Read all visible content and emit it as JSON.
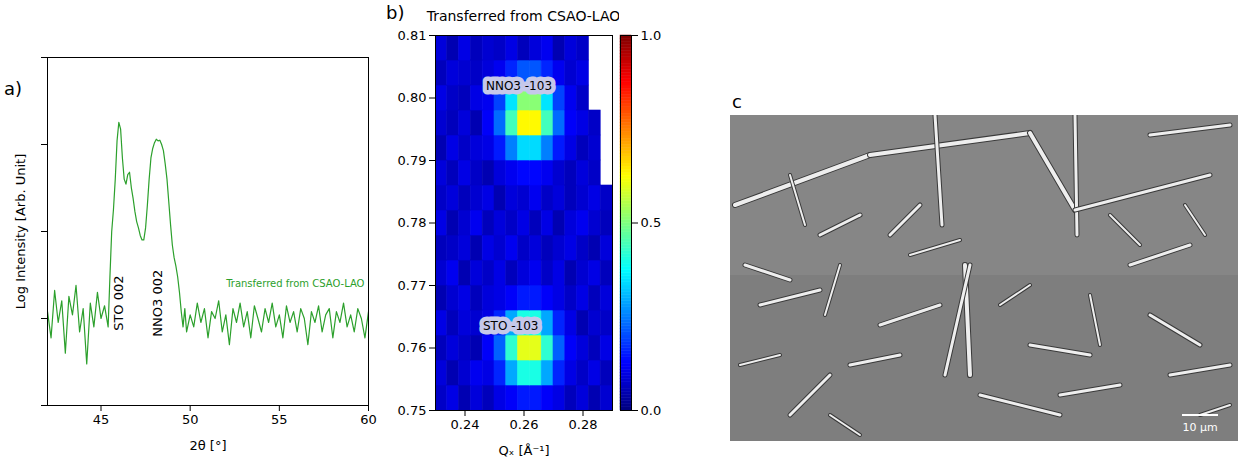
{
  "chart_data": [
    {
      "type": "line",
      "panel_label": "a)",
      "xlabel": "2θ [°]",
      "ylabel": "Log Intensity [Arb. Unit]",
      "log": "y",
      "tick_labels": "x",
      "legend": "right",
      "xlim": [
        42,
        60
      ],
      "xticks": [
        45,
        50,
        55,
        60
      ],
      "ylim": [
        0.1,
        1000
      ],
      "yticks": [
        0.1,
        1,
        10,
        100,
        1000
      ],
      "x": [
        42.0,
        42.2,
        42.4,
        42.6,
        42.8,
        43.0,
        43.2,
        43.4,
        43.6,
        43.8,
        44.0,
        44.2,
        44.4,
        44.6,
        44.8,
        45.0,
        45.2,
        45.4,
        45.5,
        45.6,
        45.7,
        45.8,
        45.9,
        46.0,
        46.1,
        46.2,
        46.3,
        46.4,
        46.5,
        46.6,
        46.7,
        46.8,
        46.9,
        47.0,
        47.1,
        47.2,
        47.3,
        47.4,
        47.5,
        47.6,
        47.7,
        47.8,
        47.9,
        48.0,
        48.1,
        48.2,
        48.3,
        48.4,
        48.5,
        48.6,
        48.7,
        48.8,
        48.9,
        49.0,
        49.1,
        49.2,
        49.3,
        49.4,
        49.5,
        49.6,
        49.7,
        49.8,
        50.0,
        50.2,
        50.4,
        50.6,
        50.8,
        51.0,
        51.2,
        51.4,
        51.6,
        51.8,
        52.0,
        52.2,
        52.4,
        52.6,
        52.8,
        53.0,
        53.2,
        53.4,
        53.6,
        53.8,
        54.0,
        54.2,
        54.4,
        54.6,
        54.8,
        55.0,
        55.2,
        55.4,
        55.6,
        55.8,
        56.0,
        56.2,
        56.4,
        56.6,
        56.8,
        57.0,
        57.2,
        57.4,
        57.6,
        57.8,
        58.0,
        58.2,
        58.4,
        58.6,
        58.8,
        59.0,
        59.2,
        59.4,
        59.6,
        59.8,
        60.0
      ],
      "series": [
        {
          "name": "Transferred from CSAO-LAO",
          "color": "#2ca02c",
          "values": [
            1.2,
            0.6,
            2.1,
            0.9,
            1.6,
            0.4,
            1.8,
            1.1,
            2.4,
            0.7,
            1.3,
            0.3,
            1.5,
            0.8,
            2.0,
            1.0,
            1.4,
            0.8,
            3,
            10,
            18,
            40,
            110,
            180,
            150,
            70,
            40,
            35,
            45,
            48,
            32,
            24,
            17,
            13,
            11,
            9,
            8,
            8,
            11,
            20,
            40,
            70,
            90,
            105,
            115,
            110,
            112,
            100,
            85,
            60,
            40,
            22,
            12,
            7,
            5,
            4,
            3,
            2,
            1.2,
            0.8,
            1.3,
            0.7,
            1.1,
            0.8,
            1.5,
            0.9,
            1.3,
            0.6,
            1.2,
            1.0,
            1.6,
            0.7,
            1.1,
            0.5,
            1.3,
            0.9,
            1.5,
            0.8,
            1.2,
            0.6,
            1.4,
            1.0,
            0.7,
            1.3,
            0.9,
            1.5,
            0.8,
            1.1,
            0.6,
            1.4,
            0.9,
            1.2,
            0.7,
            1.3,
            1.0,
            0.5,
            1.2,
            0.9,
            1.4,
            0.7,
            1.1,
            1.3,
            0.6,
            1.2,
            0.9,
            1.5,
            0.8,
            1.1,
            0.7,
            1.3,
            1.0,
            0.6,
            1.2
          ]
        }
      ],
      "annotations": [
        {
          "text": "STO 002",
          "x": 46.0,
          "y": 1.5
        },
        {
          "text": "NNO3 002",
          "x": 48.2,
          "y": 1.5
        }
      ]
    },
    {
      "type": "heatmap",
      "panel_label": "b)",
      "title": "Transferred from CSAO-LAO",
      "xlabel": "Qₓ [Å⁻¹]",
      "xlim": [
        0.23,
        0.29
      ],
      "xticks": [
        0.24,
        0.26,
        0.28
      ],
      "ylim": [
        0.75,
        0.81
      ],
      "yticks": [
        0.75,
        0.76,
        0.77,
        0.78,
        0.79,
        {
          "value": 0.8,
          "label": "0.80"
        },
        0.81
      ],
      "cells": {
        "x_edges": [
          0.23,
          0.234,
          0.238,
          0.242,
          0.246,
          0.25,
          0.254,
          0.258,
          0.262,
          0.266,
          0.27,
          0.274,
          0.278,
          0.282,
          0.286,
          0.29
        ],
        "y_edges": [
          0.75,
          0.754,
          0.758,
          0.762,
          0.766,
          0.77,
          0.774,
          0.778,
          0.782,
          0.786,
          0.79,
          0.794,
          0.798,
          0.802,
          0.806,
          0.81
        ],
        "values": [
          [
            0.07,
            0.1,
            0.05,
            0.09,
            0.06,
            0.1,
            0.12,
            0.15,
            0.15,
            0.12,
            0.1,
            0.06,
            0.09,
            0.05,
            0.08
          ],
          [
            0.09,
            0.05,
            0.08,
            0.11,
            0.1,
            0.16,
            0.29,
            0.4,
            0.4,
            0.29,
            0.16,
            0.1,
            0.07,
            0.1,
            0.06
          ],
          [
            0.06,
            0.09,
            0.07,
            0.05,
            0.12,
            0.22,
            0.42,
            0.6,
            0.6,
            0.42,
            0.22,
            0.12,
            0.09,
            0.06,
            0.1
          ],
          [
            0.1,
            0.06,
            0.09,
            0.08,
            0.1,
            0.16,
            0.29,
            0.4,
            0.4,
            0.29,
            0.16,
            0.1,
            0.05,
            0.08,
            0.07
          ],
          [
            0.05,
            0.08,
            0.1,
            0.06,
            0.09,
            0.1,
            0.12,
            0.15,
            0.15,
            0.12,
            0.1,
            0.07,
            0.1,
            0.06,
            0.09
          ],
          [
            0.08,
            0.11,
            0.05,
            0.09,
            0.07,
            0.1,
            0.06,
            0.09,
            0.11,
            0.07,
            0.1,
            0.05,
            0.08,
            0.1,
            0.06
          ],
          [
            0.06,
            0.07,
            0.09,
            0.05,
            0.1,
            0.08,
            0.11,
            0.07,
            0.09,
            0.06,
            0.08,
            0.1,
            0.07,
            0.05,
            0.09
          ],
          [
            0.1,
            0.05,
            0.08,
            0.11,
            0.06,
            0.09,
            0.07,
            0.1,
            0.06,
            0.1,
            0.05,
            0.09,
            0.11,
            0.08,
            0.06
          ],
          [
            0.07,
            0.09,
            0.06,
            0.08,
            0.1,
            0.05,
            0.09,
            0.08,
            0.11,
            0.07,
            0.09,
            0.06,
            0.08,
            0.1,
            0.07
          ],
          [
            0.09,
            0.06,
            0.1,
            0.07,
            0.05,
            0.09,
            0.11,
            0.13,
            0.13,
            0.11,
            0.08,
            0.06,
            0.09,
            0.07,
            null
          ],
          [
            0.05,
            0.1,
            0.07,
            0.09,
            0.1,
            0.15,
            0.25,
            0.34,
            0.34,
            0.25,
            0.15,
            0.1,
            0.06,
            0.08,
            null
          ],
          [
            0.08,
            0.06,
            0.09,
            0.05,
            0.12,
            0.23,
            0.44,
            0.63,
            0.63,
            0.44,
            0.23,
            0.12,
            0.1,
            0.07,
            null
          ],
          [
            0.1,
            0.07,
            0.06,
            0.1,
            0.11,
            0.19,
            0.35,
            0.51,
            0.51,
            0.35,
            0.19,
            0.11,
            0.07,
            null,
            null
          ],
          [
            0.06,
            0.09,
            0.08,
            0.07,
            0.09,
            0.11,
            0.16,
            0.21,
            0.21,
            0.16,
            0.11,
            0.08,
            0.1,
            null,
            null
          ],
          [
            0.09,
            0.05,
            0.1,
            0.06,
            0.08,
            0.07,
            0.1,
            0.06,
            0.09,
            0.11,
            0.05,
            0.09,
            0.07,
            null,
            null
          ]
        ]
      },
      "colorbar": {
        "lim": [
          0,
          1
        ],
        "ticks": [
          {
            "value": 0,
            "label": "0.0"
          },
          {
            "value": 0.5,
            "label": "0.5"
          },
          {
            "value": 1,
            "label": "1.0"
          }
        ]
      },
      "annotations": [
        {
          "text": "NNO3 -103",
          "x": 0.2583,
          "y": 0.8019
        },
        {
          "text": "STO -103",
          "x": 0.2555,
          "y": 0.7635
        }
      ]
    }
  ],
  "image": {
    "panel_label": "c",
    "scale_bar": "10 µm"
  }
}
